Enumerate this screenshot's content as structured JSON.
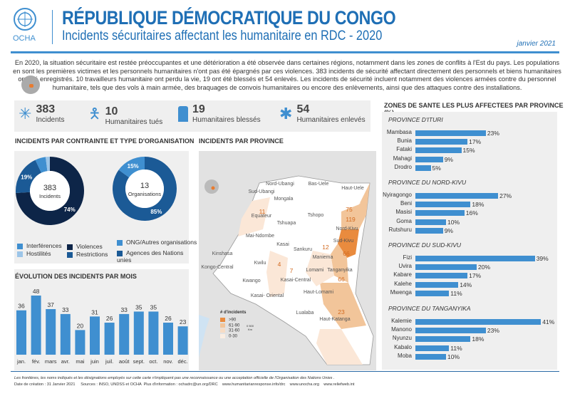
{
  "header": {
    "org": "OCHA",
    "title": "RÉPUBLIQUE DÉMOCRATIQUE DU CONGO",
    "subtitle": "Incidents sécuritaires affectant les humanitaire en RDC - 2020",
    "date": "janvier 2021"
  },
  "intro": "En 2020, la situation sécuritaire est restée préoccupantes et une détérioration a été observée dans certaines régions, notamment dans les zones de conflits à l'Est du pays. Les populations en sont les premières victimes et les personnels humanitaires n'ont pas été épargnés par ces violences. 383 incidents de sécurité affectant directement des personnels et biens humanitaires ont été enregistrés. 10 travailleurs humanitaire ont perdu la vie, 19 ont été blessés et 54 enlevés. Les incidents de sécurité incluent notamment des violences armées contre du personnel humanitaire, tels que des vols à main armée, des braquages de convois humanitaires ou encore des enlèvements, ainsi que des attaques contre des installations.",
  "stats": [
    {
      "value": "383",
      "label": "Incidents",
      "icon": "burst-icon"
    },
    {
      "value": "10",
      "label": "Humanitaires tués",
      "icon": "falling-person-icon"
    },
    {
      "value": "19",
      "label": "Humanitaires blessés",
      "icon": "injured-person-icon"
    },
    {
      "value": "54",
      "label": "Humanitaires enlevés",
      "icon": "abducted-person-icon"
    }
  ],
  "colors": {
    "violences": "#0d2548",
    "restrictions": "#1b5a96",
    "interferences": "#3f8fd0",
    "hostilites": "#9cc5e8",
    "bar": "#3f8fd0"
  },
  "chart_data": [
    {
      "type": "pie",
      "title": "INCIDENTS PAR CONTRAINTE ET TYPE D'ORGANISATION",
      "center_value": "383",
      "center_label": "Incidents",
      "slices": [
        {
          "name": "Violences",
          "value": 74,
          "label": "74%"
        },
        {
          "name": "Restrictions",
          "value": 19,
          "label": "19%"
        },
        {
          "name": "Interférences",
          "value": 5,
          "label": "5%"
        },
        {
          "name": "Hostilités",
          "value": 2,
          "label": "2%"
        }
      ]
    },
    {
      "type": "pie",
      "center_value": "13",
      "center_label": "Organisations",
      "slices": [
        {
          "name": "Agences des Nations unies",
          "value": 85,
          "label": "85%"
        },
        {
          "name": "ONG/Autres organisations",
          "value": 15,
          "label": "15%"
        }
      ]
    },
    {
      "type": "bar",
      "title": "ÉVOLUTION DES INCIDENTS PAR MOIS",
      "categories": [
        "jan.",
        "fév.",
        "mars",
        "avr.",
        "mai",
        "juin",
        "juil.",
        "août",
        "sept.",
        "oct.",
        "nov.",
        "déc."
      ],
      "values": [
        36,
        48,
        37,
        33,
        20,
        31,
        26,
        33,
        35,
        35,
        26,
        23
      ]
    },
    {
      "type": "bar",
      "title": "ZONES DE SANTE LES PLUS AFFECTEES PAR PROVINCE (%)",
      "groups": [
        {
          "name": "PROVINCE D'ITURI",
          "categories": [
            "Mambasa",
            "Bunia",
            "Fataki",
            "Mahagi",
            "Drodro"
          ],
          "values": [
            23,
            17,
            15,
            9,
            5
          ]
        },
        {
          "name": "PROVINCE DU NORD-KIVU",
          "categories": [
            "Nyiragongo",
            "Beni",
            "Masisi",
            "Goma",
            "Rutshuru"
          ],
          "values": [
            27,
            18,
            16,
            10,
            9
          ]
        },
        {
          "name": "PROVINCE DU SUD-KIVU",
          "categories": [
            "Fizi",
            "Uvira",
            "Kabare",
            "Kalehe",
            "Mwenga"
          ],
          "values": [
            39,
            20,
            17,
            14,
            11
          ]
        },
        {
          "name": "PROVINCE DU TANGANYIKA",
          "categories": [
            "Kalemie",
            "Manono",
            "Nyunzu",
            "Kabalo",
            "Moba"
          ],
          "values": [
            41,
            23,
            18,
            11,
            10
          ]
        }
      ]
    }
  ],
  "legend1": [
    "Interférences",
    "Hostilités",
    "Violences",
    "Restrictions"
  ],
  "legend2": [
    "ONG/Autres organisations",
    "Agences des Nations unies"
  ],
  "map": {
    "title": "INCIDENTS PAR PROVINCE",
    "legend_title": "# d'incidents",
    "legend": [
      ">90",
      "61-90",
      "31-60",
      "0-30"
    ],
    "scale": "0 500 Km",
    "provinces": [
      "Nord-Ubangi",
      "Bas-Uele",
      "Haut-Uele",
      "Sud-Ubangi",
      "Mongala",
      "Ituri",
      "Equateur",
      "Tshopo",
      "Tshuapa",
      "Nord-Kivu",
      "Mai-Ndombe",
      "Sud-Kivu",
      "Kasai",
      "Sankuru",
      "Kinshasa",
      "Maniema",
      "Kwilu",
      "Kongo-Central",
      "Lomami",
      "Tanganyika",
      "Kasai-Central",
      "Kwango",
      "Haut-Lomami",
      "Kasai- Oriental",
      "Lualaba",
      "Haut-Katanga"
    ],
    "counts": {
      "Ituri": "75",
      "Nord-Kivu": "119",
      "Equateur": "11",
      "Maniema": "12",
      "Sud-Kivu": "66",
      "Kasai": "4",
      "Kasai-Central": "7",
      "Tanganyika": "66",
      "Haut-Katanga": "23"
    }
  },
  "footer": {
    "disclaimer": "Les frontières, les noms indiqués et les désignations employés sur cette carte n'impliquent  pas une reconnaissance ou une acceptation officielle  de l'Organisation des Nations Unies .",
    "credits": "Date de création : 31 Janvier 2021     Sources : INSO, UNDSS et OCHA  Plus d'information : ochadrc@un.org/DRC    www.humanitarianresponse.info/drc    www.unocha.org    www.reliefweb.int"
  }
}
